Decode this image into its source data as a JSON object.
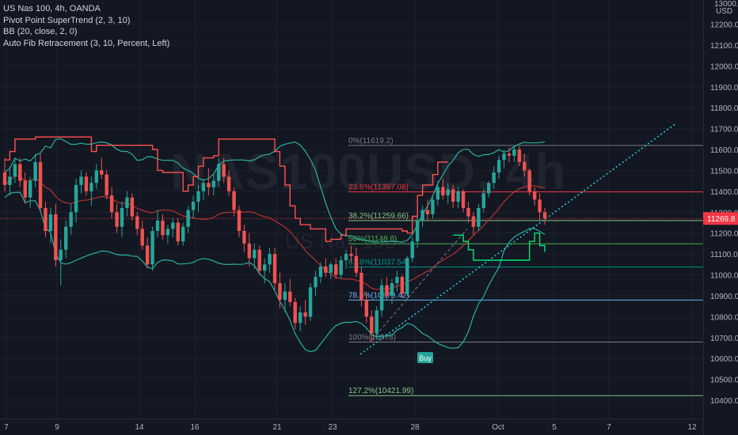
{
  "legend": {
    "symbol_line": "US Nas 100, 4h, OANDA",
    "indicator_1": "Pivot Point SuperTrend (2, 3, 10)",
    "indicator_2": "BB (20, close, 2, 0)",
    "indicator_3": "Auto Fib Retracement (3, 10, Percent, Left)"
  },
  "watermark": {
    "symbol": "NAS100USD, 4h",
    "name": "US Nas 100"
  },
  "price_axis": {
    "currency_top": "13000.0",
    "currency": "USD",
    "current_price": "11269.8",
    "current_price_value": 11269.8,
    "current_price_color": "#f23645"
  },
  "colors": {
    "up": "#26a69a",
    "down": "#ef5350",
    "bb": "#2ab0a0",
    "bb_basis": "#b7322f",
    "supertrend_down": "#ff5252",
    "supertrend_up": "#00e676",
    "trendline": "#26c6da",
    "grid": "#1e222d"
  },
  "buy_label": {
    "text": "Buy",
    "color": "#26a69a"
  },
  "chart_data": {
    "type": "candlestick",
    "title": "US Nas 100, 4h, OANDA",
    "x_ticks": [
      "7",
      "9",
      "14",
      "16",
      "21",
      "23",
      "28",
      "Oct",
      "5",
      "7",
      "12"
    ],
    "y_ticks": [
      10400,
      10500,
      10600,
      10700,
      10800,
      10900,
      11000,
      11100,
      11200,
      11300,
      11400,
      11500,
      11600,
      11700,
      11800,
      11900,
      12000,
      12100,
      12200
    ],
    "ylim": [
      10370,
      12370
    ],
    "fib_levels": [
      {
        "label": "0%(11619.2)",
        "price": 11619.2,
        "color": "#787b86"
      },
      {
        "label": "23.6%(11397.08)",
        "price": 11397.08,
        "color": "#f23645"
      },
      {
        "label": "38.2%(11259.66)",
        "price": 11259.66,
        "color": "#81c784"
      },
      {
        "label": "50%(11148.6)",
        "price": 11148.6,
        "color": "#4caf50"
      },
      {
        "label": "61.8%(11037.54)",
        "price": 11037.54,
        "color": "#009688"
      },
      {
        "label": "78.6%(10879.42)",
        "price": 10879.42,
        "color": "#64b5f6"
      },
      {
        "label": "100%(10678)",
        "price": 10678,
        "color": "#787b86"
      },
      {
        "label": "127.2%(10421.99)",
        "price": 10421.99,
        "color": "#81c784"
      }
    ],
    "candles": [
      [
        11490,
        11560,
        11400,
        11430
      ],
      [
        11430,
        11520,
        11380,
        11470
      ],
      [
        11470,
        11560,
        11440,
        11530
      ],
      [
        11530,
        11560,
        11420,
        11450
      ],
      [
        11450,
        11490,
        11340,
        11370
      ],
      [
        11370,
        11470,
        11320,
        11450
      ],
      [
        11450,
        11580,
        11420,
        11540
      ],
      [
        11540,
        11580,
        11300,
        11320
      ],
      [
        11320,
        11350,
        11180,
        11210
      ],
      [
        11210,
        11320,
        11150,
        11290
      ],
      [
        11290,
        11340,
        11040,
        11070
      ],
      [
        11070,
        11170,
        10950,
        11120
      ],
      [
        11120,
        11260,
        11080,
        11230
      ],
      [
        11230,
        11340,
        11190,
        11300
      ],
      [
        11300,
        11460,
        11250,
        11430
      ],
      [
        11430,
        11500,
        11390,
        11470
      ],
      [
        11470,
        11490,
        11380,
        11400
      ],
      [
        11400,
        11470,
        11330,
        11440
      ],
      [
        11440,
        11530,
        11410,
        11500
      ],
      [
        11500,
        11560,
        11460,
        11480
      ],
      [
        11480,
        11500,
        11360,
        11380
      ],
      [
        11380,
        11420,
        11270,
        11300
      ],
      [
        11300,
        11340,
        11200,
        11230
      ],
      [
        11230,
        11350,
        11180,
        11320
      ],
      [
        11320,
        11400,
        11280,
        11370
      ],
      [
        11370,
        11390,
        11260,
        11280
      ],
      [
        11280,
        11300,
        11190,
        11220
      ],
      [
        11220,
        11260,
        11120,
        11140
      ],
      [
        11140,
        11180,
        11030,
        11050
      ],
      [
        11050,
        11230,
        11020,
        11210
      ],
      [
        11210,
        11310,
        11180,
        11260
      ],
      [
        11260,
        11290,
        11170,
        11190
      ],
      [
        11190,
        11240,
        11150,
        11220
      ],
      [
        11220,
        11270,
        11180,
        11250
      ],
      [
        11250,
        11270,
        11140,
        11160
      ],
      [
        11160,
        11250,
        11140,
        11230
      ],
      [
        11230,
        11330,
        11200,
        11310
      ],
      [
        11310,
        11380,
        11270,
        11350
      ],
      [
        11350,
        11430,
        11300,
        11400
      ],
      [
        11400,
        11460,
        11360,
        11440
      ],
      [
        11440,
        11510,
        11380,
        11420
      ],
      [
        11420,
        11480,
        11380,
        11450
      ],
      [
        11450,
        11560,
        11420,
        11530
      ],
      [
        11530,
        11560,
        11440,
        11470
      ],
      [
        11470,
        11500,
        11380,
        11400
      ],
      [
        11400,
        11420,
        11280,
        11310
      ],
      [
        11310,
        11330,
        11180,
        11210
      ],
      [
        11210,
        11240,
        11110,
        11150
      ],
      [
        11150,
        11200,
        11040,
        11080
      ],
      [
        11080,
        11150,
        11030,
        11120
      ],
      [
        11120,
        11140,
        11000,
        11020
      ],
      [
        11020,
        11080,
        10960,
        11050
      ],
      [
        11050,
        11130,
        11010,
        11100
      ],
      [
        11100,
        11130,
        10930,
        10960
      ],
      [
        10960,
        11010,
        10840,
        10880
      ],
      [
        10880,
        10960,
        10820,
        10920
      ],
      [
        10920,
        10980,
        10850,
        10870
      ],
      [
        10870,
        10890,
        10740,
        10770
      ],
      [
        10770,
        10850,
        10730,
        10820
      ],
      [
        10820,
        10880,
        10760,
        10800
      ],
      [
        10800,
        10960,
        10780,
        10940
      ],
      [
        10940,
        11020,
        10900,
        10990
      ],
      [
        10990,
        11060,
        10960,
        11040
      ],
      [
        11040,
        11080,
        10990,
        11010
      ],
      [
        11010,
        11060,
        10980,
        11050
      ],
      [
        11050,
        11080,
        10980,
        11000
      ],
      [
        11000,
        11090,
        10980,
        11070
      ],
      [
        11070,
        11120,
        11030,
        11100
      ],
      [
        11100,
        11140,
        11060,
        11090
      ],
      [
        11090,
        11130,
        10990,
        11010
      ],
      [
        11010,
        11040,
        10850,
        10880
      ],
      [
        10880,
        10920,
        10770,
        10800
      ],
      [
        10800,
        10830,
        10680,
        10720
      ],
      [
        10720,
        10850,
        10690,
        10830
      ],
      [
        10830,
        10980,
        10800,
        10950
      ],
      [
        10950,
        10990,
        10880,
        10900
      ],
      [
        10900,
        10980,
        10860,
        10960
      ],
      [
        10960,
        11020,
        10920,
        10990
      ],
      [
        10990,
        11000,
        10890,
        10910
      ],
      [
        10910,
        11090,
        10900,
        11080
      ],
      [
        11080,
        11180,
        11060,
        11160
      ],
      [
        11160,
        11280,
        11130,
        11260
      ],
      [
        11260,
        11330,
        11230,
        11310
      ],
      [
        11310,
        11360,
        11260,
        11290
      ],
      [
        11290,
        11380,
        11270,
        11360
      ],
      [
        11360,
        11450,
        11330,
        11420
      ],
      [
        11420,
        11460,
        11360,
        11380
      ],
      [
        11380,
        11440,
        11340,
        11410
      ],
      [
        11410,
        11430,
        11320,
        11350
      ],
      [
        11350,
        11420,
        11320,
        11400
      ],
      [
        11400,
        11410,
        11300,
        11320
      ],
      [
        11320,
        11350,
        11250,
        11280
      ],
      [
        11280,
        11300,
        11190,
        11230
      ],
      [
        11230,
        11340,
        11210,
        11320
      ],
      [
        11320,
        11410,
        11300,
        11390
      ],
      [
        11390,
        11450,
        11370,
        11440
      ],
      [
        11440,
        11520,
        11410,
        11490
      ],
      [
        11490,
        11570,
        11460,
        11550
      ],
      [
        11550,
        11600,
        11510,
        11580
      ],
      [
        11580,
        11610,
        11540,
        11570
      ],
      [
        11570,
        11620,
        11540,
        11600
      ],
      [
        11600,
        11615,
        11520,
        11540
      ],
      [
        11540,
        11580,
        11470,
        11500
      ],
      [
        11500,
        11510,
        11380,
        11400
      ],
      [
        11400,
        11420,
        11330,
        11360
      ],
      [
        11360,
        11390,
        11260,
        11300
      ],
      [
        11300,
        11320,
        11240,
        11270
      ]
    ]
  }
}
